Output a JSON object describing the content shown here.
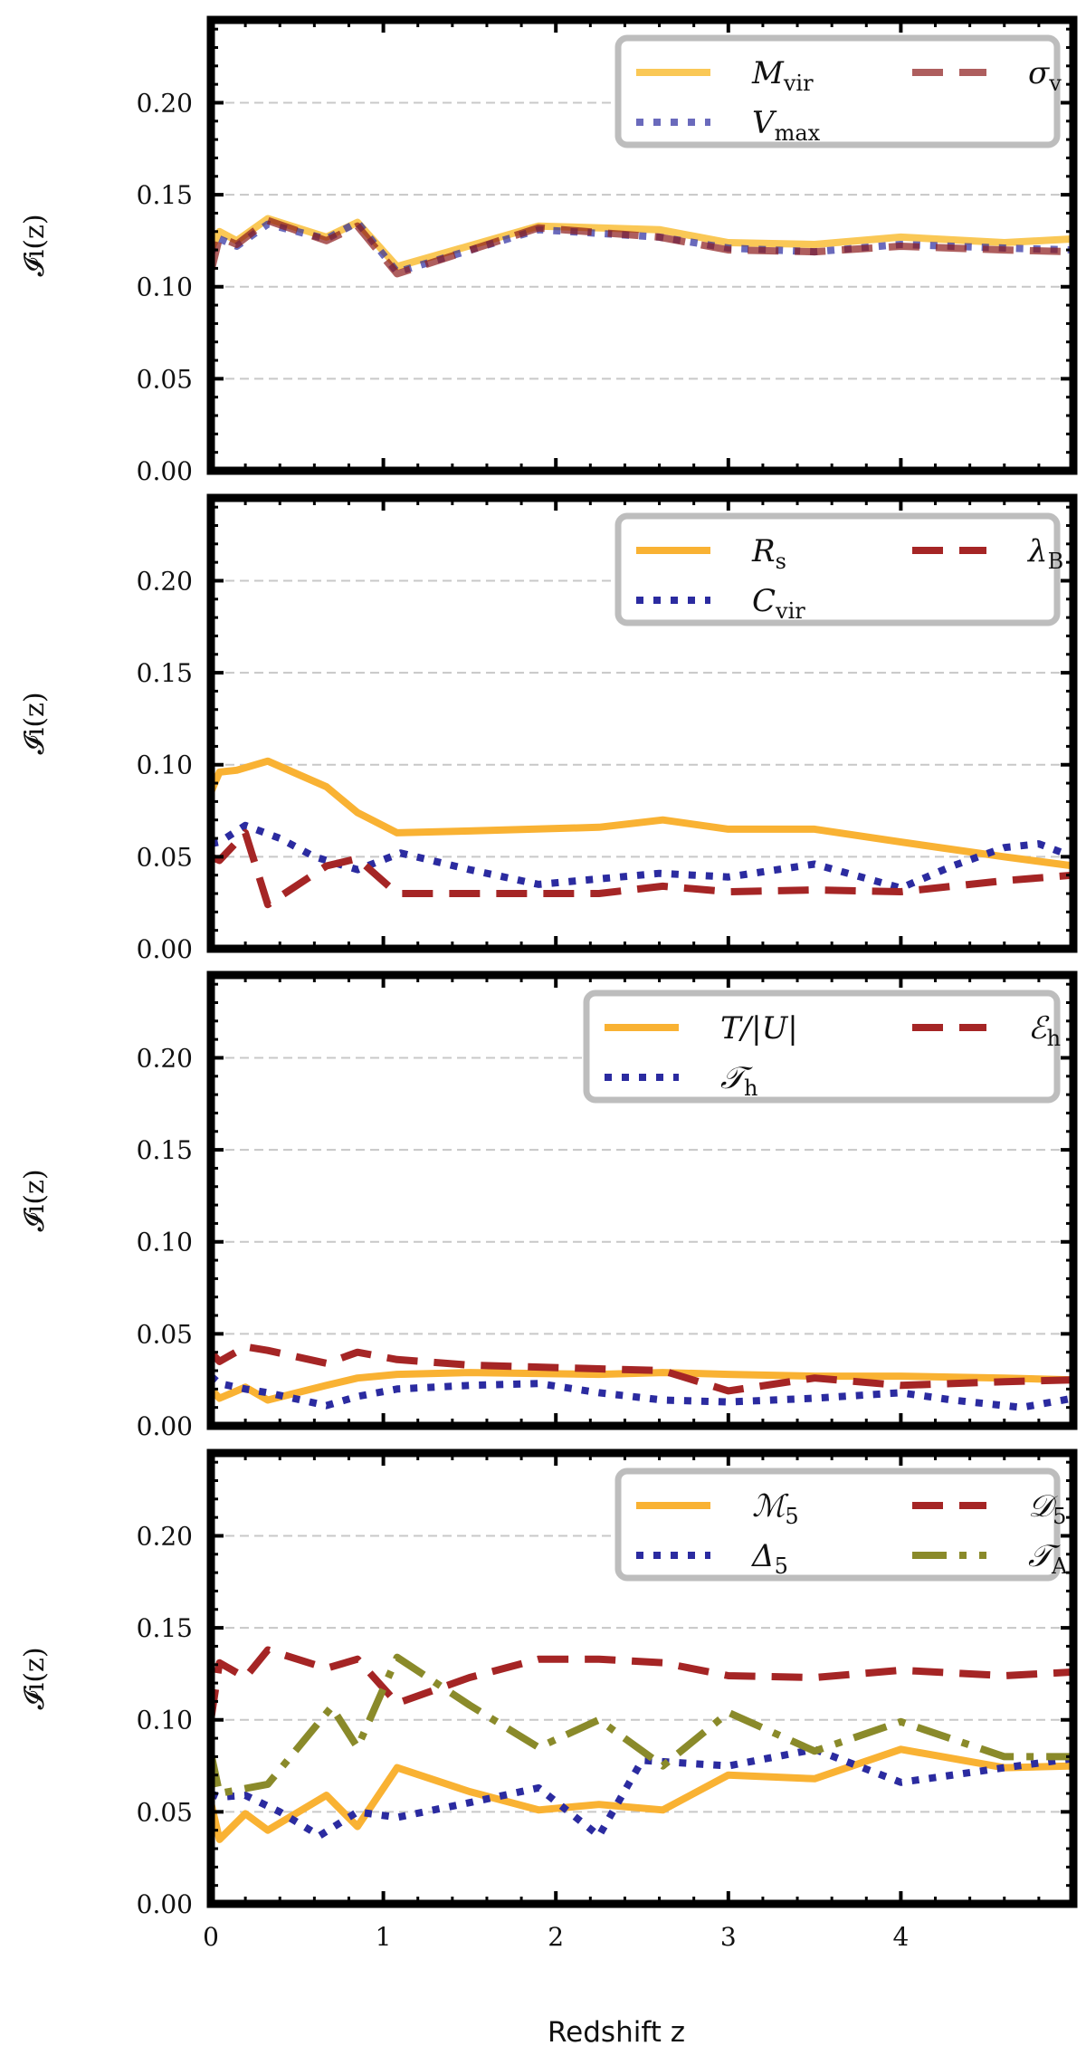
{
  "figure": {
    "xlabel": "Redshift z",
    "ylabel": "𝓘i(z)"
  },
  "chart_data": [
    {
      "type": "line",
      "panel": 1,
      "title": "",
      "xlabel": "",
      "ylabel": "𝓘i(z)",
      "xlim": [
        0,
        5
      ],
      "ylim": [
        0,
        0.245
      ],
      "yticks": [
        "0.00",
        "0.05",
        "0.10",
        "0.15",
        "0.20"
      ],
      "xticks": [
        "0",
        "1",
        "2",
        "3",
        "4"
      ],
      "show_xticklabels": false,
      "grid": "horizontal dashed",
      "legend_position": "top-right",
      "legend_columns": 2,
      "series": [
        {
          "name": "Mvir",
          "legend_main": "M",
          "legend_sub": "vir",
          "style": "solid",
          "color": "#f8b51d",
          "opacity": 0.75,
          "x": [
            0,
            0.05,
            0.15,
            0.33,
            0.67,
            0.85,
            1.08,
            1.9,
            2.6,
            3.0,
            3.5,
            4.0,
            4.6,
            5.0
          ],
          "y": [
            0.12,
            0.13,
            0.125,
            0.137,
            0.127,
            0.135,
            0.111,
            0.133,
            0.131,
            0.124,
            0.123,
            0.127,
            0.124,
            0.126
          ]
        },
        {
          "name": "Vmax",
          "legend_main": "V",
          "legend_sub": "max",
          "style": "dotted",
          "color": "#2b2ba0",
          "opacity": 0.7,
          "x": [
            0,
            0.05,
            0.15,
            0.33,
            0.67,
            0.85,
            1.08,
            1.9,
            2.6,
            3.0,
            3.5,
            4.0,
            4.6,
            5.0
          ],
          "y": [
            0.118,
            0.126,
            0.122,
            0.134,
            0.126,
            0.135,
            0.108,
            0.131,
            0.127,
            0.121,
            0.119,
            0.123,
            0.121,
            0.12
          ]
        },
        {
          "name": "σv",
          "legend_main": "σ",
          "legend_sub": "v",
          "style": "dashed",
          "color": "#8b1a1a",
          "opacity": 0.7,
          "x": [
            0,
            0.05,
            0.15,
            0.33,
            0.67,
            0.85,
            1.08,
            1.9,
            2.6,
            3.0,
            3.5,
            4.0,
            4.6,
            5.0
          ],
          "y": [
            0.108,
            0.127,
            0.123,
            0.136,
            0.125,
            0.133,
            0.107,
            0.132,
            0.127,
            0.12,
            0.119,
            0.122,
            0.12,
            0.119
          ]
        }
      ]
    },
    {
      "type": "line",
      "panel": 2,
      "title": "",
      "xlabel": "",
      "ylabel": "𝓘i(z)",
      "xlim": [
        0,
        5
      ],
      "ylim": [
        0,
        0.245
      ],
      "yticks": [
        "0.00",
        "0.05",
        "0.10",
        "0.15",
        "0.20"
      ],
      "xticks": [
        "0",
        "1",
        "2",
        "3",
        "4"
      ],
      "show_xticklabels": false,
      "grid": "horizontal dashed",
      "legend_position": "top-right",
      "legend_columns": 2,
      "series": [
        {
          "name": "Rs",
          "legend_main": "R",
          "legend_sub": "s",
          "style": "solid",
          "color": "#f9b233",
          "opacity": 1,
          "x": [
            0,
            0.05,
            0.15,
            0.33,
            0.67,
            0.85,
            1.08,
            1.5,
            2.25,
            2.62,
            3.0,
            3.5,
            4.0,
            4.6,
            5.0
          ],
          "y": [
            0.085,
            0.096,
            0.097,
            0.102,
            0.088,
            0.074,
            0.063,
            0.064,
            0.066,
            0.07,
            0.065,
            0.065,
            0.058,
            0.05,
            0.045
          ]
        },
        {
          "name": "Cvir",
          "legend_main": "C",
          "legend_sub": "vir",
          "style": "dotted",
          "color": "#2b2ba0",
          "opacity": 1,
          "x": [
            0,
            0.05,
            0.2,
            0.4,
            0.6,
            0.85,
            1.1,
            1.5,
            1.9,
            2.25,
            2.6,
            3.0,
            3.5,
            4.0,
            4.3,
            4.6,
            4.8,
            5.0
          ],
          "y": [
            0.057,
            0.058,
            0.067,
            0.06,
            0.05,
            0.043,
            0.052,
            0.043,
            0.035,
            0.038,
            0.041,
            0.039,
            0.046,
            0.033,
            0.045,
            0.055,
            0.057,
            0.05
          ]
        },
        {
          "name": "λB",
          "legend_main": "λ",
          "legend_sub": "B",
          "style": "dashed",
          "color": "#a52525",
          "opacity": 1,
          "x": [
            0,
            0.05,
            0.2,
            0.33,
            0.67,
            0.85,
            1.08,
            1.5,
            2.25,
            2.62,
            3.0,
            3.5,
            4.0,
            4.6,
            5.0
          ],
          "y": [
            0.05,
            0.048,
            0.063,
            0.024,
            0.045,
            0.049,
            0.03,
            0.03,
            0.03,
            0.034,
            0.031,
            0.032,
            0.031,
            0.037,
            0.04
          ]
        }
      ]
    },
    {
      "type": "line",
      "panel": 3,
      "title": "",
      "xlabel": "",
      "ylabel": "𝓘i(z)",
      "xlim": [
        0,
        5
      ],
      "ylim": [
        0,
        0.245
      ],
      "yticks": [
        "0.00",
        "0.05",
        "0.10",
        "0.15",
        "0.20"
      ],
      "xticks": [
        "0",
        "1",
        "2",
        "3",
        "4"
      ],
      "show_xticklabels": false,
      "grid": "horizontal dashed",
      "legend_position": "top-right",
      "legend_columns": 2,
      "series": [
        {
          "name": "T/|U|",
          "legend_main": "T/|U|",
          "legend_sub": "",
          "style": "solid",
          "color": "#f9b233",
          "opacity": 1,
          "x": [
            0,
            0.05,
            0.2,
            0.33,
            0.67,
            0.85,
            1.08,
            1.5,
            2.25,
            2.62,
            3.0,
            3.5,
            4.0,
            4.6,
            5.0
          ],
          "y": [
            0.02,
            0.015,
            0.021,
            0.014,
            0.022,
            0.026,
            0.028,
            0.029,
            0.028,
            0.029,
            0.028,
            0.027,
            0.027,
            0.026,
            0.025
          ]
        },
        {
          "name": "𝒯h",
          "legend_main": "𝒯",
          "legend_sub": "h",
          "style": "dotted",
          "color": "#2b2ba0",
          "opacity": 1,
          "x": [
            0,
            0.05,
            0.2,
            0.33,
            0.67,
            0.85,
            1.08,
            1.5,
            1.9,
            2.25,
            2.62,
            3.0,
            3.5,
            4.0,
            4.3,
            4.7,
            5.0
          ],
          "y": [
            0.027,
            0.023,
            0.02,
            0.018,
            0.011,
            0.016,
            0.02,
            0.022,
            0.023,
            0.018,
            0.014,
            0.013,
            0.015,
            0.018,
            0.014,
            0.01,
            0.015
          ]
        },
        {
          "name": "ℰh",
          "legend_main": "ℰ",
          "legend_sub": "h",
          "style": "dashed",
          "color": "#a52525",
          "opacity": 1,
          "x": [
            0,
            0.05,
            0.2,
            0.33,
            0.67,
            0.85,
            1.08,
            1.5,
            2.25,
            2.62,
            3.0,
            3.5,
            4.0,
            4.6,
            5.0
          ],
          "y": [
            0.04,
            0.035,
            0.043,
            0.041,
            0.034,
            0.04,
            0.036,
            0.033,
            0.031,
            0.03,
            0.019,
            0.026,
            0.022,
            0.024,
            0.025
          ]
        }
      ]
    },
    {
      "type": "line",
      "panel": 4,
      "title": "",
      "xlabel": "Redshift z",
      "ylabel": "𝓘i(z)",
      "xlim": [
        0,
        5
      ],
      "ylim": [
        0,
        0.245
      ],
      "yticks": [
        "0.00",
        "0.05",
        "0.10",
        "0.15",
        "0.20"
      ],
      "xticks": [
        "0",
        "1",
        "2",
        "3",
        "4"
      ],
      "show_xticklabels": true,
      "grid": "horizontal dashed",
      "legend_position": "top-right",
      "legend_columns": 2,
      "series": [
        {
          "name": "ℳ₅",
          "legend_main": "ℳ",
          "legend_sub": "5",
          "style": "solid",
          "color": "#f9b233",
          "opacity": 1,
          "x": [
            0,
            0.05,
            0.2,
            0.33,
            0.67,
            0.85,
            1.08,
            1.5,
            1.9,
            2.25,
            2.62,
            3.0,
            3.5,
            4.0,
            4.6,
            5.0
          ],
          "y": [
            0.055,
            0.035,
            0.049,
            0.04,
            0.059,
            0.042,
            0.074,
            0.061,
            0.051,
            0.054,
            0.051,
            0.07,
            0.068,
            0.084,
            0.074,
            0.075
          ]
        },
        {
          "name": "Δ₅",
          "legend_main": "Δ",
          "legend_sub": "5",
          "style": "dotted",
          "color": "#2b2ba0",
          "opacity": 1,
          "x": [
            0,
            0.05,
            0.2,
            0.4,
            0.63,
            0.85,
            1.08,
            1.5,
            1.9,
            2.25,
            2.5,
            3.0,
            3.5,
            4.0,
            4.6,
            5.0
          ],
          "y": [
            0.06,
            0.058,
            0.059,
            0.05,
            0.037,
            0.05,
            0.047,
            0.055,
            0.063,
            0.037,
            0.078,
            0.075,
            0.084,
            0.066,
            0.074,
            0.079
          ]
        },
        {
          "name": "𝒟₅",
          "legend_main": "𝒟",
          "legend_sub": "5",
          "style": "dashed",
          "color": "#a52525",
          "opacity": 1,
          "x": [
            0,
            0.05,
            0.2,
            0.33,
            0.67,
            0.85,
            1.08,
            1.5,
            1.9,
            2.25,
            2.62,
            3.0,
            3.5,
            4.0,
            4.6,
            5.0
          ],
          "y": [
            0.1,
            0.131,
            0.123,
            0.138,
            0.128,
            0.133,
            0.109,
            0.123,
            0.133,
            0.133,
            0.131,
            0.124,
            0.123,
            0.127,
            0.124,
            0.126
          ]
        },
        {
          "name": "𝒯A",
          "legend_main": "𝒯",
          "legend_sub": "A",
          "style": "dashdot",
          "color": "#8a8a2a",
          "opacity": 1,
          "x": [
            0,
            0.05,
            0.33,
            0.7,
            0.85,
            1.08,
            1.5,
            1.9,
            2.25,
            2.62,
            3.0,
            3.5,
            4.0,
            4.6,
            5.0
          ],
          "y": [
            0.082,
            0.06,
            0.065,
            0.107,
            0.085,
            0.134,
            0.108,
            0.085,
            0.1,
            0.075,
            0.104,
            0.083,
            0.099,
            0.08,
            0.08
          ]
        }
      ]
    }
  ]
}
